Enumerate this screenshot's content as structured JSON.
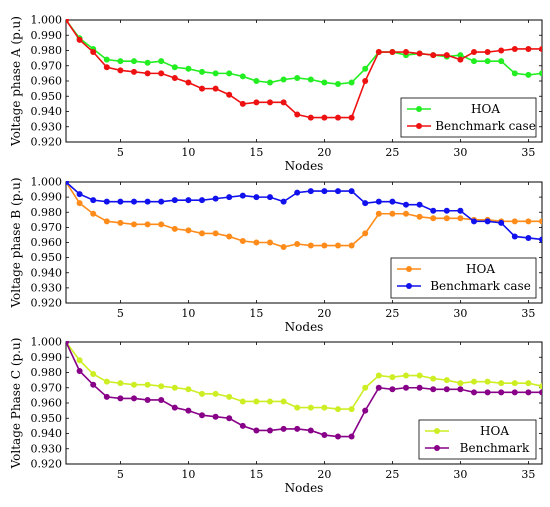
{
  "chart_data": [
    {
      "type": "line",
      "ylabel": "Voltage phase A (p.u)",
      "xlabel": "Nodes",
      "xlim": [
        1,
        36
      ],
      "ylim": [
        0.92,
        1.0
      ],
      "x_ticks": [
        5,
        10,
        15,
        20,
        25,
        30,
        35
      ],
      "y_ticks": [
        "0.920",
        "0.930",
        "0.940",
        "0.950",
        "0.960",
        "0.970",
        "0.980",
        "0.990",
        "1.000"
      ],
      "legend_position": "bottom-right",
      "series": [
        {
          "name": "HOA",
          "color": "#22ee22",
          "x": [
            1,
            2,
            3,
            4,
            5,
            6,
            7,
            8,
            9,
            10,
            11,
            12,
            13,
            14,
            15,
            16,
            17,
            18,
            19,
            20,
            21,
            22,
            23,
            24,
            25,
            26,
            27,
            28,
            29,
            30,
            31,
            32,
            33,
            34,
            35,
            36
          ],
          "values": [
            1.0,
            0.988,
            0.981,
            0.974,
            0.973,
            0.973,
            0.972,
            0.973,
            0.969,
            0.968,
            0.966,
            0.965,
            0.965,
            0.963,
            0.96,
            0.959,
            0.961,
            0.962,
            0.961,
            0.959,
            0.958,
            0.959,
            0.968,
            0.979,
            0.979,
            0.977,
            0.978,
            0.977,
            0.976,
            0.977,
            0.973,
            0.973,
            0.973,
            0.965,
            0.964,
            0.965
          ]
        },
        {
          "name": "Benchmark case",
          "color": "#ee1111",
          "x": [
            1,
            2,
            3,
            4,
            5,
            6,
            7,
            8,
            9,
            10,
            11,
            12,
            13,
            14,
            15,
            16,
            17,
            18,
            19,
            20,
            21,
            22,
            23,
            24,
            25,
            26,
            27,
            28,
            29,
            30,
            31,
            32,
            33,
            34,
            35,
            36
          ],
          "values": [
            1.0,
            0.987,
            0.979,
            0.969,
            0.967,
            0.966,
            0.965,
            0.965,
            0.962,
            0.959,
            0.955,
            0.955,
            0.951,
            0.945,
            0.946,
            0.946,
            0.946,
            0.938,
            0.936,
            0.936,
            0.936,
            0.936,
            0.96,
            0.979,
            0.979,
            0.979,
            0.978,
            0.977,
            0.977,
            0.974,
            0.979,
            0.979,
            0.98,
            0.981,
            0.981,
            0.981
          ]
        }
      ]
    },
    {
      "type": "line",
      "ylabel": "Voltage phase B (p.u)",
      "xlabel": "Nodes",
      "xlim": [
        1,
        36
      ],
      "ylim": [
        0.92,
        1.0
      ],
      "x_ticks": [
        5,
        10,
        15,
        20,
        25,
        30,
        35
      ],
      "y_ticks": [
        "0.920",
        "0.930",
        "0.940",
        "0.950",
        "0.960",
        "0.970",
        "0.980",
        "0.990",
        "1.000"
      ],
      "legend_position": "bottom-right",
      "series": [
        {
          "name": "HOA",
          "color": "#ff8c1a",
          "x": [
            1,
            2,
            3,
            4,
            5,
            6,
            7,
            8,
            9,
            10,
            11,
            12,
            13,
            14,
            15,
            16,
            17,
            18,
            19,
            20,
            21,
            22,
            23,
            24,
            25,
            26,
            27,
            28,
            29,
            30,
            31,
            32,
            33,
            34,
            35,
            36
          ],
          "values": [
            1.0,
            0.986,
            0.979,
            0.974,
            0.973,
            0.972,
            0.972,
            0.972,
            0.969,
            0.968,
            0.966,
            0.966,
            0.964,
            0.961,
            0.96,
            0.96,
            0.957,
            0.959,
            0.958,
            0.958,
            0.958,
            0.958,
            0.966,
            0.979,
            0.979,
            0.979,
            0.977,
            0.976,
            0.976,
            0.976,
            0.975,
            0.975,
            0.974,
            0.974,
            0.974,
            0.974
          ]
        },
        {
          "name": "Benchmark case",
          "color": "#1111ee",
          "x": [
            1,
            2,
            3,
            4,
            5,
            6,
            7,
            8,
            9,
            10,
            11,
            12,
            13,
            14,
            15,
            16,
            17,
            18,
            19,
            20,
            21,
            22,
            23,
            24,
            25,
            26,
            27,
            28,
            29,
            30,
            31,
            32,
            33,
            34,
            35,
            36
          ],
          "values": [
            1.0,
            0.992,
            0.988,
            0.987,
            0.987,
            0.987,
            0.987,
            0.987,
            0.988,
            0.988,
            0.988,
            0.989,
            0.99,
            0.991,
            0.99,
            0.99,
            0.987,
            0.993,
            0.994,
            0.994,
            0.994,
            0.994,
            0.986,
            0.987,
            0.987,
            0.985,
            0.985,
            0.981,
            0.981,
            0.981,
            0.974,
            0.974,
            0.973,
            0.964,
            0.963,
            0.962
          ]
        }
      ]
    },
    {
      "type": "line",
      "ylabel": "Voltage Phase C (p.u)",
      "xlabel": "Nodes",
      "xlim": [
        1,
        36
      ],
      "ylim": [
        0.92,
        1.0
      ],
      "x_ticks": [
        5,
        10,
        15,
        20,
        25,
        30,
        35
      ],
      "y_ticks": [
        "0.920",
        "0.930",
        "0.940",
        "0.950",
        "0.960",
        "0.970",
        "0.980",
        "0.990",
        "1.000"
      ],
      "legend_position": "bottom-right",
      "series": [
        {
          "name": "HOA",
          "color": "#ccee22",
          "x": [
            1,
            2,
            3,
            4,
            5,
            6,
            7,
            8,
            9,
            10,
            11,
            12,
            13,
            14,
            15,
            16,
            17,
            18,
            19,
            20,
            21,
            22,
            23,
            24,
            25,
            26,
            27,
            28,
            29,
            30,
            31,
            32,
            33,
            34,
            35,
            36
          ],
          "values": [
            1.0,
            0.988,
            0.979,
            0.974,
            0.973,
            0.972,
            0.972,
            0.971,
            0.97,
            0.969,
            0.966,
            0.966,
            0.964,
            0.961,
            0.961,
            0.961,
            0.961,
            0.957,
            0.957,
            0.957,
            0.956,
            0.956,
            0.97,
            0.978,
            0.977,
            0.978,
            0.978,
            0.976,
            0.975,
            0.973,
            0.974,
            0.974,
            0.973,
            0.973,
            0.973,
            0.971
          ]
        },
        {
          "name": "Benchmark",
          "color": "#880088",
          "x": [
            1,
            2,
            3,
            4,
            5,
            6,
            7,
            8,
            9,
            10,
            11,
            12,
            13,
            14,
            15,
            16,
            17,
            18,
            19,
            20,
            21,
            22,
            23,
            24,
            25,
            26,
            27,
            28,
            29,
            30,
            31,
            32,
            33,
            34,
            35,
            36
          ],
          "values": [
            1.0,
            0.981,
            0.972,
            0.964,
            0.963,
            0.963,
            0.962,
            0.962,
            0.957,
            0.955,
            0.952,
            0.951,
            0.95,
            0.945,
            0.942,
            0.942,
            0.943,
            0.943,
            0.942,
            0.939,
            0.938,
            0.938,
            0.955,
            0.97,
            0.969,
            0.97,
            0.97,
            0.969,
            0.969,
            0.969,
            0.967,
            0.967,
            0.967,
            0.967,
            0.967,
            0.967
          ]
        }
      ]
    }
  ]
}
